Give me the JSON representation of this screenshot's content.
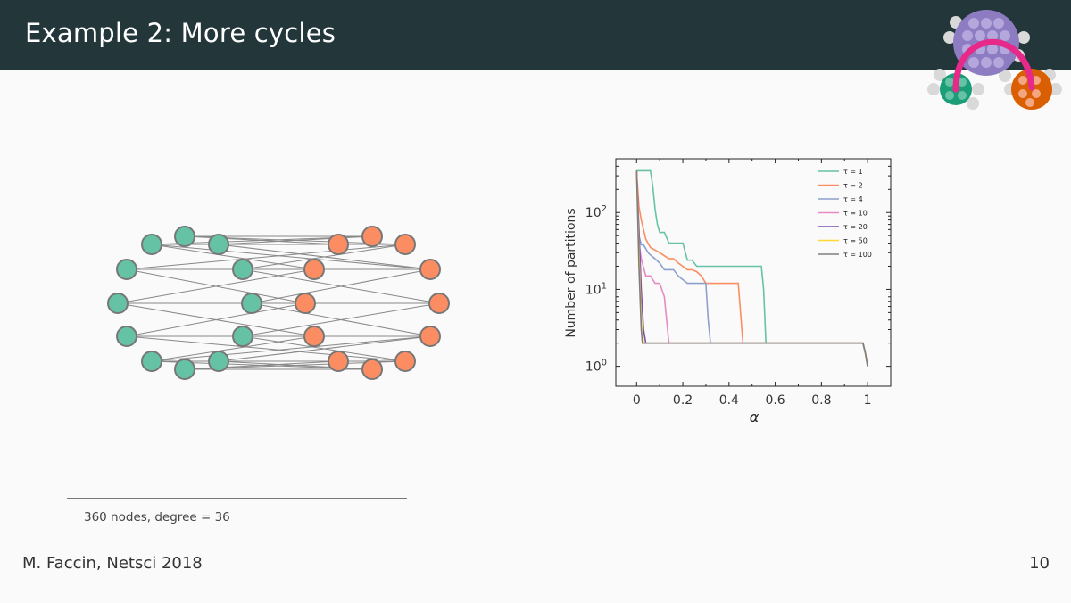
{
  "slide": {
    "title": "Example 2: More cycles",
    "footnote": "360 nodes, degree = 36",
    "footer_left": "M. Faccin, Netsci 2018",
    "page_number": "10"
  },
  "colors": {
    "header_bg": "#23373b",
    "community_a": "#66c2a5",
    "community_b": "#fc8d62",
    "logo_purple": "#8e7cc3",
    "logo_green": "#1b9e77",
    "logo_orange": "#d95f02",
    "logo_arc": "#e7298a"
  },
  "chart_data": {
    "type": "line",
    "title": "",
    "xlabel": "α",
    "ylabel": "Number of partitions",
    "xlim": [
      -0.09,
      1.1
    ],
    "ylim": [
      0.55,
      500
    ],
    "yscale": "log",
    "xticks": [
      0,
      0.2,
      0.4,
      0.6,
      0.8,
      1
    ],
    "xtick_labels": [
      "0",
      "0.2",
      "0.4",
      "0.6",
      "0.8",
      "1"
    ],
    "yticks": [
      1,
      10,
      100
    ],
    "ytick_base": "10",
    "ytick_exponents": [
      "0",
      "1",
      "2"
    ],
    "legend_position": "top-right",
    "series": [
      {
        "name": "τ = 1",
        "color": "#66c2a5",
        "x": [
          0,
          0.005,
          0.06,
          0.07,
          0.08,
          0.09,
          0.1,
          0.12,
          0.14,
          0.16,
          0.2,
          0.22,
          0.24,
          0.26,
          0.28,
          0.3,
          0.54,
          0.55,
          0.56,
          0.98,
          0.99,
          1.0
        ],
        "y": [
          350,
          350,
          350,
          220,
          110,
          70,
          55,
          55,
          40,
          40,
          40,
          24,
          24,
          20,
          20,
          20,
          20,
          10,
          2,
          2,
          1.5,
          1
        ]
      },
      {
        "name": "τ = 2",
        "color": "#fc8d62",
        "x": [
          0,
          0.01,
          0.02,
          0.04,
          0.06,
          0.1,
          0.14,
          0.16,
          0.18,
          0.2,
          0.22,
          0.24,
          0.26,
          0.28,
          0.3,
          0.42,
          0.44,
          0.46,
          0.98,
          0.99,
          1.0
        ],
        "y": [
          350,
          120,
          80,
          45,
          35,
          30,
          25,
          25,
          22,
          20,
          18,
          18,
          17,
          15,
          12,
          12,
          12,
          2,
          2,
          1.5,
          1
        ]
      },
      {
        "name": "τ = 4",
        "color": "#8da0cb",
        "x": [
          0,
          0.01,
          0.02,
          0.03,
          0.05,
          0.06,
          0.08,
          0.1,
          0.12,
          0.14,
          0.16,
          0.18,
          0.22,
          0.24,
          0.3,
          0.31,
          0.32,
          0.98,
          0.99,
          1.0
        ],
        "y": [
          350,
          50,
          38,
          38,
          30,
          28,
          25,
          22,
          18,
          18,
          18,
          15,
          12,
          12,
          12,
          4,
          2,
          2,
          1.5,
          1
        ]
      },
      {
        "name": "τ = 10",
        "color": "#e78ac3",
        "x": [
          0,
          0.01,
          0.02,
          0.04,
          0.06,
          0.08,
          0.09,
          0.1,
          0.12,
          0.13,
          0.14,
          0.98,
          0.99,
          1.0
        ],
        "y": [
          350,
          40,
          25,
          15,
          15,
          12,
          12,
          12,
          8,
          4,
          2,
          2,
          1.5,
          1
        ]
      },
      {
        "name": "τ = 20",
        "color": "#7b52ae",
        "x": [
          0,
          0.01,
          0.02,
          0.03,
          0.04,
          0.98,
          0.99,
          1.0
        ],
        "y": [
          350,
          60,
          10,
          3,
          2,
          2,
          1.5,
          1
        ]
      },
      {
        "name": "τ = 50",
        "color": "#ffd92f",
        "x": [
          0,
          0.01,
          0.02,
          0.03,
          0.98,
          0.99,
          1.0
        ],
        "y": [
          350,
          30,
          4,
          2,
          2,
          1.5,
          1
        ]
      },
      {
        "name": "τ = 100",
        "color": "#7f7f7f",
        "x": [
          0,
          0.01,
          0.02,
          0.025,
          0.98,
          0.99,
          1.0
        ],
        "y": [
          350,
          20,
          3,
          2,
          2,
          1.5,
          1
        ]
      }
    ]
  }
}
